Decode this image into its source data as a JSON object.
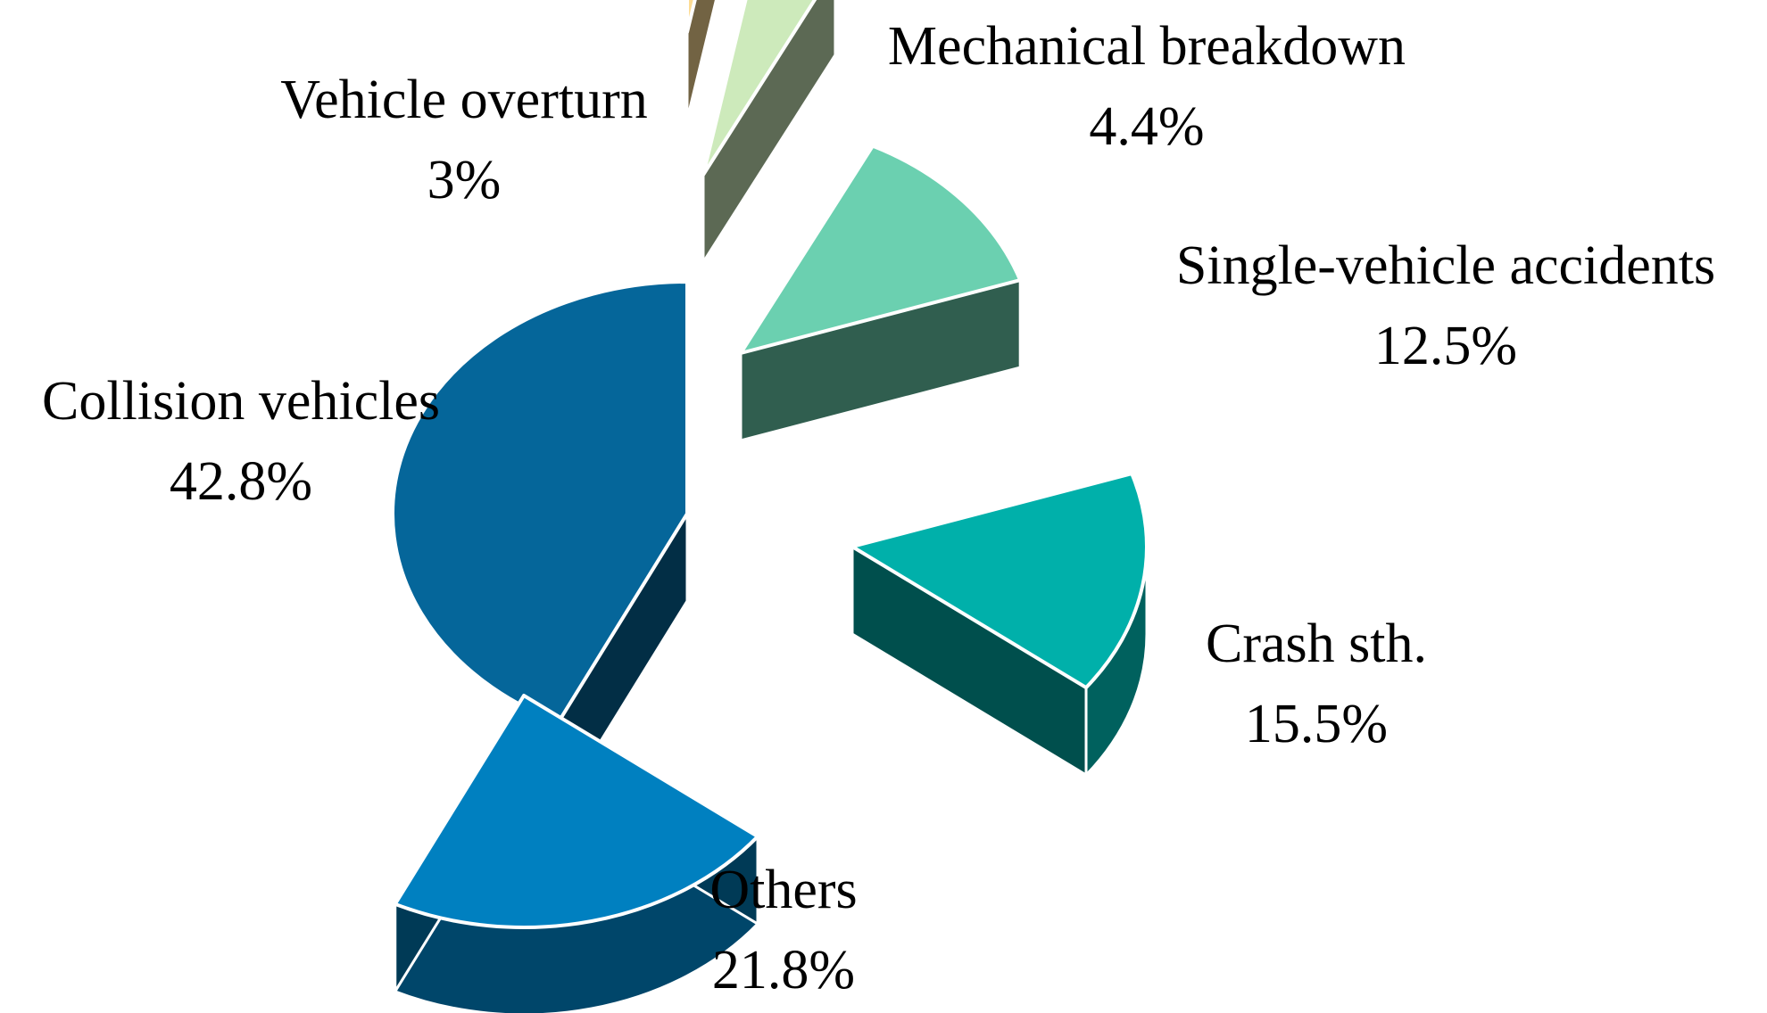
{
  "chart_data": {
    "type": "pie",
    "title": "",
    "slices": [
      {
        "label": "Collision vehicles",
        "value": 42.8,
        "value_label": "42.8%",
        "color": "#05669a",
        "exploded": false
      },
      {
        "label": "Vehicle overturn",
        "value": 3.0,
        "value_label": "3%",
        "color": "#fddc94",
        "exploded": true
      },
      {
        "label": "Mechanical breakdown",
        "value": 4.4,
        "value_label": "4.4%",
        "color": "#cdeabb",
        "exploded": true
      },
      {
        "label": "Single-vehicle accidents",
        "value": 12.5,
        "value_label": "12.5%",
        "color": "#6bd0b0",
        "exploded": true
      },
      {
        "label": "Crash sth.",
        "value": 15.5,
        "value_label": "15.5%",
        "color": "#00b0aa",
        "exploded": true
      },
      {
        "label": "Others",
        "value": 21.8,
        "value_label": "21.8%",
        "color": "#0080c0",
        "exploded": true
      }
    ],
    "style": "3d-exploded",
    "legend": "none"
  }
}
